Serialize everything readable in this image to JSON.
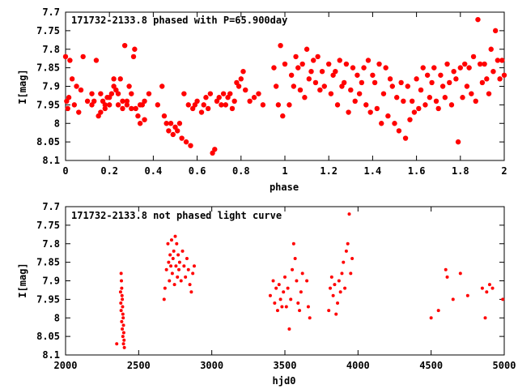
{
  "chart_data": [
    {
      "type": "scatter",
      "title": "171732-2133.8 phased with P=65.900day",
      "xlabel": "phase",
      "ylabel": "I[mag]",
      "xlim": [
        0,
        2
      ],
      "ylim": [
        8.1,
        7.7
      ],
      "y_inverted": true,
      "xticks": [
        "0",
        "0.2",
        "0.4",
        "0.6",
        "0.8",
        "1",
        "1.2",
        "1.4",
        "1.6",
        "1.8",
        "2"
      ],
      "xtick_values": [
        0,
        0.2,
        0.4,
        0.6,
        0.8,
        1.0,
        1.2,
        1.4,
        1.6,
        1.8,
        2.0
      ],
      "yticks": [
        "7.7",
        "7.75",
        "7.8",
        "7.85",
        "7.9",
        "7.95",
        "8",
        "8.05",
        "8.1"
      ],
      "ytick_values": [
        7.7,
        7.75,
        7.8,
        7.85,
        7.9,
        7.95,
        8.0,
        8.05,
        8.1
      ],
      "marker_color": "#ff0000",
      "points": [
        [
          0.0,
          7.82
        ],
        [
          0.005,
          7.94
        ],
        [
          0.01,
          7.96
        ],
        [
          0.015,
          7.93
        ],
        [
          0.02,
          7.83
        ],
        [
          0.03,
          7.88
        ],
        [
          0.04,
          7.95
        ],
        [
          0.05,
          7.9
        ],
        [
          0.06,
          7.97
        ],
        [
          0.07,
          7.91
        ],
        [
          0.1,
          7.94
        ],
        [
          0.12,
          7.92
        ],
        [
          0.13,
          7.94
        ],
        [
          0.14,
          7.83
        ],
        [
          0.15,
          7.98
        ],
        [
          0.16,
          7.92
        ],
        [
          0.17,
          7.94
        ],
        [
          0.18,
          7.95
        ],
        [
          0.19,
          7.93
        ],
        [
          0.2,
          7.95
        ],
        [
          0.21,
          7.92
        ],
        [
          0.22,
          7.9
        ],
        [
          0.23,
          7.91
        ],
        [
          0.24,
          7.95
        ],
        [
          0.25,
          7.88
        ],
        [
          0.26,
          7.96
        ],
        [
          0.27,
          7.79
        ],
        [
          0.28,
          7.94
        ],
        [
          0.29,
          7.9
        ],
        [
          0.3,
          7.96
        ],
        [
          0.31,
          7.82
        ],
        [
          0.315,
          7.8
        ],
        [
          0.32,
          7.96
        ],
        [
          0.33,
          7.98
        ],
        [
          0.34,
          8.0
        ],
        [
          0.35,
          7.95
        ],
        [
          0.36,
          7.94
        ],
        [
          0.38,
          7.92
        ],
        [
          0.22,
          7.88
        ],
        [
          0.24,
          7.92
        ],
        [
          0.26,
          7.94
        ],
        [
          0.28,
          7.95
        ],
        [
          0.3,
          7.92
        ],
        [
          0.18,
          7.96
        ],
        [
          0.16,
          7.97
        ],
        [
          0.08,
          7.82
        ],
        [
          0.12,
          7.95
        ],
        [
          0.2,
          7.93
        ],
        [
          0.34,
          7.95
        ],
        [
          0.36,
          7.99
        ],
        [
          0.42,
          7.95
        ],
        [
          0.44,
          7.9
        ],
        [
          0.45,
          7.98
        ],
        [
          0.46,
          8.0
        ],
        [
          0.47,
          8.02
        ],
        [
          0.48,
          8.0
        ],
        [
          0.49,
          8.03
        ],
        [
          0.5,
          8.01
        ],
        [
          0.51,
          8.02
        ],
        [
          0.52,
          8.0
        ],
        [
          0.53,
          8.04
        ],
        [
          0.54,
          7.92
        ],
        [
          0.55,
          8.05
        ],
        [
          0.56,
          7.95
        ],
        [
          0.57,
          8.06
        ],
        [
          0.58,
          7.96
        ],
        [
          0.59,
          7.95
        ],
        [
          0.6,
          7.94
        ],
        [
          0.62,
          7.97
        ],
        [
          0.63,
          7.95
        ],
        [
          0.64,
          7.93
        ],
        [
          0.65,
          7.96
        ],
        [
          0.66,
          7.92
        ],
        [
          0.67,
          8.08
        ],
        [
          0.68,
          8.07
        ],
        [
          0.69,
          7.94
        ],
        [
          0.7,
          7.93
        ],
        [
          0.71,
          7.95
        ],
        [
          0.72,
          7.92
        ],
        [
          0.73,
          7.95
        ],
        [
          0.74,
          7.93
        ],
        [
          0.75,
          7.92
        ],
        [
          0.76,
          7.96
        ],
        [
          0.77,
          7.94
        ],
        [
          0.78,
          7.89
        ],
        [
          0.79,
          7.9
        ],
        [
          0.8,
          7.88
        ],
        [
          0.81,
          7.86
        ],
        [
          0.82,
          7.91
        ],
        [
          0.84,
          7.94
        ],
        [
          0.86,
          7.93
        ],
        [
          0.88,
          7.92
        ],
        [
          0.9,
          7.95
        ],
        [
          0.95,
          7.85
        ],
        [
          0.96,
          7.9
        ],
        [
          0.97,
          7.95
        ],
        [
          0.98,
          7.79
        ],
        [
          0.99,
          7.98
        ],
        [
          1.0,
          7.84
        ],
        [
          1.02,
          7.95
        ],
        [
          1.03,
          7.87
        ],
        [
          1.04,
          7.9
        ],
        [
          1.05,
          7.82
        ],
        [
          1.06,
          7.85
        ],
        [
          1.07,
          7.91
        ],
        [
          1.08,
          7.84
        ],
        [
          1.09,
          7.93
        ],
        [
          1.1,
          7.8
        ],
        [
          1.11,
          7.88
        ],
        [
          1.12,
          7.86
        ],
        [
          1.13,
          7.83
        ],
        [
          1.14,
          7.89
        ],
        [
          1.15,
          7.82
        ],
        [
          1.16,
          7.91
        ],
        [
          1.17,
          7.86
        ],
        [
          1.18,
          7.9
        ],
        [
          1.2,
          7.84
        ],
        [
          1.21,
          7.92
        ],
        [
          1.22,
          7.87
        ],
        [
          1.23,
          7.86
        ],
        [
          1.24,
          7.95
        ],
        [
          1.25,
          7.83
        ],
        [
          1.26,
          7.9
        ],
        [
          1.27,
          7.89
        ],
        [
          1.28,
          7.84
        ],
        [
          1.29,
          7.97
        ],
        [
          1.3,
          7.91
        ],
        [
          1.31,
          7.85
        ],
        [
          1.32,
          7.94
        ],
        [
          1.33,
          7.87
        ],
        [
          1.34,
          7.92
        ],
        [
          1.35,
          7.89
        ],
        [
          1.36,
          7.85
        ],
        [
          1.37,
          7.95
        ],
        [
          1.38,
          7.83
        ],
        [
          1.39,
          7.97
        ],
        [
          1.4,
          7.87
        ],
        [
          1.41,
          7.89
        ],
        [
          1.42,
          7.96
        ],
        [
          1.43,
          7.84
        ],
        [
          1.44,
          8.0
        ],
        [
          1.45,
          7.92
        ],
        [
          1.46,
          7.85
        ],
        [
          1.47,
          7.98
        ],
        [
          1.48,
          7.88
        ],
        [
          1.49,
          7.9
        ],
        [
          1.5,
          8.0
        ],
        [
          1.51,
          7.93
        ],
        [
          1.52,
          8.02
        ],
        [
          1.53,
          7.89
        ],
        [
          1.54,
          7.94
        ],
        [
          1.55,
          8.04
        ],
        [
          1.56,
          7.9
        ],
        [
          1.57,
          7.99
        ],
        [
          1.58,
          7.94
        ],
        [
          1.59,
          7.97
        ],
        [
          1.6,
          7.88
        ],
        [
          1.61,
          7.96
        ],
        [
          1.62,
          7.91
        ],
        [
          1.63,
          7.85
        ],
        [
          1.64,
          7.95
        ],
        [
          1.65,
          7.87
        ],
        [
          1.66,
          7.93
        ],
        [
          1.67,
          7.89
        ],
        [
          1.68,
          7.85
        ],
        [
          1.69,
          7.94
        ],
        [
          1.7,
          7.96
        ],
        [
          1.71,
          7.87
        ],
        [
          1.72,
          7.9
        ],
        [
          1.73,
          7.93
        ],
        [
          1.74,
          7.84
        ],
        [
          1.75,
          7.89
        ],
        [
          1.76,
          7.95
        ],
        [
          1.77,
          7.86
        ],
        [
          1.78,
          7.88
        ],
        [
          1.79,
          8.05
        ],
        [
          1.8,
          7.85
        ],
        [
          1.81,
          7.93
        ],
        [
          1.82,
          7.84
        ],
        [
          1.83,
          7.9
        ],
        [
          1.84,
          7.85
        ],
        [
          1.85,
          7.92
        ],
        [
          1.86,
          7.82
        ],
        [
          1.87,
          7.94
        ],
        [
          1.88,
          7.72
        ],
        [
          1.89,
          7.84
        ],
        [
          1.9,
          7.89
        ],
        [
          1.91,
          7.84
        ],
        [
          1.92,
          7.88
        ],
        [
          1.93,
          7.92
        ],
        [
          1.94,
          7.8
        ],
        [
          1.95,
          7.86
        ],
        [
          1.96,
          7.75
        ],
        [
          1.97,
          7.83
        ],
        [
          1.98,
          7.88
        ],
        [
          1.99,
          7.83
        ],
        [
          2.0,
          7.87
        ]
      ]
    },
    {
      "type": "scatter",
      "title": "171732-2133.8 not phased light curve",
      "xlabel": "hjd0",
      "ylabel": "I[mag]",
      "xlim": [
        2000,
        5000
      ],
      "ylim": [
        8.1,
        7.7
      ],
      "y_inverted": true,
      "xticks": [
        "2000",
        "2500",
        "3000",
        "3500",
        "4000",
        "4500",
        "5000"
      ],
      "xtick_values": [
        2000,
        2500,
        3000,
        3500,
        4000,
        4500,
        5000
      ],
      "yticks": [
        "7.7",
        "7.75",
        "7.8",
        "7.85",
        "7.9",
        "7.95",
        "8",
        "8.05",
        "8.1"
      ],
      "ytick_values": [
        7.7,
        7.75,
        7.8,
        7.85,
        7.9,
        7.95,
        8.0,
        8.05,
        8.1
      ],
      "marker_color": "#ff0000",
      "points": [
        [
          2350,
          8.07
        ],
        [
          2380,
          7.88
        ],
        [
          2382,
          7.9
        ],
        [
          2384,
          7.92
        ],
        [
          2386,
          7.94
        ],
        [
          2388,
          7.95
        ],
        [
          2390,
          7.97
        ],
        [
          2392,
          7.99
        ],
        [
          2394,
          8.0
        ],
        [
          2396,
          8.02
        ],
        [
          2398,
          8.04
        ],
        [
          2400,
          8.06
        ],
        [
          2402,
          8.08
        ],
        [
          2376,
          7.93
        ],
        [
          2378,
          7.96
        ],
        [
          2380,
          7.98
        ],
        [
          2384,
          8.01
        ],
        [
          2388,
          8.03
        ],
        [
          2392,
          8.05
        ],
        [
          2396,
          8.07
        ],
        [
          2674,
          7.95
        ],
        [
          2680,
          7.92
        ],
        [
          2690,
          7.87
        ],
        [
          2700,
          7.8
        ],
        [
          2705,
          7.85
        ],
        [
          2710,
          7.9
        ],
        [
          2715,
          7.83
        ],
        [
          2720,
          7.86
        ],
        [
          2725,
          7.79
        ],
        [
          2730,
          7.88
        ],
        [
          2735,
          7.84
        ],
        [
          2740,
          7.82
        ],
        [
          2745,
          7.91
        ],
        [
          2750,
          7.78
        ],
        [
          2755,
          7.86
        ],
        [
          2760,
          7.8
        ],
        [
          2765,
          7.89
        ],
        [
          2770,
          7.83
        ],
        [
          2775,
          7.87
        ],
        [
          2780,
          7.85
        ],
        [
          2790,
          7.9
        ],
        [
          2800,
          7.82
        ],
        [
          2810,
          7.86
        ],
        [
          2820,
          7.89
        ],
        [
          2830,
          7.84
        ],
        [
          2840,
          7.87
        ],
        [
          2850,
          7.91
        ],
        [
          2860,
          7.93
        ],
        [
          2870,
          7.88
        ],
        [
          2880,
          7.86
        ],
        [
          3400,
          7.94
        ],
        [
          3420,
          7.9
        ],
        [
          3430,
          7.96
        ],
        [
          3440,
          7.92
        ],
        [
          3450,
          7.98
        ],
        [
          3460,
          7.91
        ],
        [
          3470,
          7.95
        ],
        [
          3480,
          7.97
        ],
        [
          3490,
          7.93
        ],
        [
          3500,
          7.89
        ],
        [
          3510,
          7.97
        ],
        [
          3520,
          7.92
        ],
        [
          3530,
          8.03
        ],
        [
          3540,
          7.95
        ],
        [
          3550,
          7.87
        ],
        [
          3560,
          7.8
        ],
        [
          3570,
          7.84
        ],
        [
          3580,
          7.9
        ],
        [
          3590,
          7.96
        ],
        [
          3600,
          7.98
        ],
        [
          3610,
          7.93
        ],
        [
          3620,
          7.88
        ],
        [
          3650,
          7.9
        ],
        [
          3660,
          7.97
        ],
        [
          3670,
          8.0
        ],
        [
          3800,
          7.98
        ],
        [
          3810,
          7.92
        ],
        [
          3820,
          7.89
        ],
        [
          3830,
          7.94
        ],
        [
          3840,
          7.91
        ],
        [
          3850,
          7.99
        ],
        [
          3860,
          7.96
        ],
        [
          3870,
          7.9
        ],
        [
          3880,
          7.93
        ],
        [
          3890,
          7.88
        ],
        [
          3900,
          7.85
        ],
        [
          3910,
          7.92
        ],
        [
          3920,
          7.82
        ],
        [
          3930,
          7.8
        ],
        [
          3940,
          7.72
        ],
        [
          3950,
          7.88
        ],
        [
          3960,
          7.84
        ],
        [
          4500,
          8.0
        ],
        [
          4550,
          7.98
        ],
        [
          4600,
          7.87
        ],
        [
          4610,
          7.89
        ],
        [
          4650,
          7.95
        ],
        [
          4700,
          7.88
        ],
        [
          4750,
          7.94
        ],
        [
          4850,
          7.92
        ],
        [
          4870,
          8.0
        ],
        [
          4880,
          7.93
        ],
        [
          4900,
          7.91
        ],
        [
          4920,
          7.92
        ],
        [
          4990,
          7.95
        ]
      ]
    }
  ]
}
